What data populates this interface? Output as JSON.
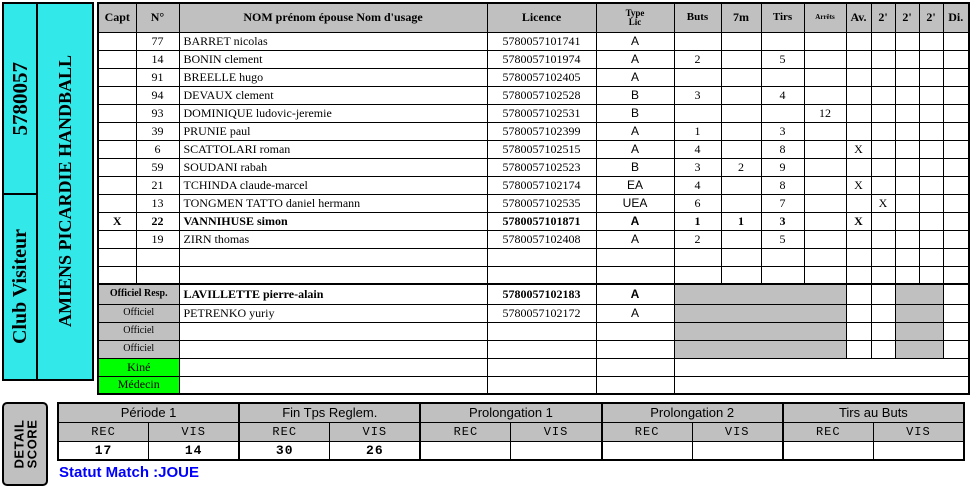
{
  "colors": {
    "cyan": "#33E8E8",
    "green": "#00FF00",
    "gray": "#C0C0C0",
    "statusblue": "#0000FF"
  },
  "club": {
    "code": "5780057",
    "role_label": "Club Visiteur",
    "name": "AMIENS PICARDIE HANDBALL"
  },
  "roster": {
    "columns": [
      "Capt",
      "N°",
      "NOM prénom épouse Nom d'usage",
      "Licence",
      "Type\nLic",
      "Buts",
      "7m",
      "Tirs",
      "Arrêts",
      "Av.",
      "2'",
      "2'",
      "2'",
      "Di."
    ],
    "players": [
      {
        "capt": "",
        "num": "77",
        "name": "BARRET nicolas",
        "licence": "5780057101741",
        "type": "A",
        "buts": "",
        "m7": "",
        "tirs": "",
        "arrets": "",
        "av": "",
        "p2a": "",
        "p2b": "",
        "p2c": "",
        "di": "",
        "bold": false
      },
      {
        "capt": "",
        "num": "14",
        "name": "BONIN clement",
        "licence": "5780057101974",
        "type": "A",
        "buts": "2",
        "m7": "",
        "tirs": "5",
        "arrets": "",
        "av": "",
        "p2a": "",
        "p2b": "",
        "p2c": "",
        "di": "",
        "bold": false
      },
      {
        "capt": "",
        "num": "91",
        "name": "BREELLE hugo",
        "licence": "5780057102405",
        "type": "A",
        "buts": "",
        "m7": "",
        "tirs": "",
        "arrets": "",
        "av": "",
        "p2a": "",
        "p2b": "",
        "p2c": "",
        "di": "",
        "bold": false
      },
      {
        "capt": "",
        "num": "94",
        "name": "DEVAUX clement",
        "licence": "5780057102528",
        "type": "B",
        "buts": "3",
        "m7": "",
        "tirs": "4",
        "arrets": "",
        "av": "",
        "p2a": "",
        "p2b": "",
        "p2c": "",
        "di": "",
        "bold": false
      },
      {
        "capt": "",
        "num": "93",
        "name": "DOMINIQUE ludovic-jeremie",
        "licence": "5780057102531",
        "type": "B",
        "buts": "",
        "m7": "",
        "tirs": "",
        "arrets": "12",
        "av": "",
        "p2a": "",
        "p2b": "",
        "p2c": "",
        "di": "",
        "bold": false
      },
      {
        "capt": "",
        "num": "39",
        "name": "PRUNIE paul",
        "licence": "5780057102399",
        "type": "A",
        "buts": "1",
        "m7": "",
        "tirs": "3",
        "arrets": "",
        "av": "",
        "p2a": "",
        "p2b": "",
        "p2c": "",
        "di": "",
        "bold": false
      },
      {
        "capt": "",
        "num": "6",
        "name": "SCATTOLARI roman",
        "licence": "5780057102515",
        "type": "A",
        "buts": "4",
        "m7": "",
        "tirs": "8",
        "arrets": "",
        "av": "X",
        "p2a": "",
        "p2b": "",
        "p2c": "",
        "di": "",
        "bold": false
      },
      {
        "capt": "",
        "num": "59",
        "name": "SOUDANI rabah",
        "licence": "5780057102523",
        "type": "B",
        "buts": "3",
        "m7": "2",
        "tirs": "9",
        "arrets": "",
        "av": "",
        "p2a": "",
        "p2b": "",
        "p2c": "",
        "di": "",
        "bold": false
      },
      {
        "capt": "",
        "num": "21",
        "name": "TCHINDA claude-marcel",
        "licence": "5780057102174",
        "type": "EA",
        "buts": "4",
        "m7": "",
        "tirs": "8",
        "arrets": "",
        "av": "X",
        "p2a": "",
        "p2b": "",
        "p2c": "",
        "di": "",
        "bold": false
      },
      {
        "capt": "",
        "num": "13",
        "name": "TONGMEN TATTO daniel hermann",
        "licence": "5780057102535",
        "type": "UEA",
        "buts": "6",
        "m7": "",
        "tirs": "7",
        "arrets": "",
        "av": "",
        "p2a": "X",
        "p2b": "",
        "p2c": "",
        "di": "",
        "bold": false
      },
      {
        "capt": "X",
        "num": "22",
        "name": "VANNIHUSE simon",
        "licence": "5780057101871",
        "type": "A",
        "buts": "1",
        "m7": "1",
        "tirs": "3",
        "arrets": "",
        "av": "X",
        "p2a": "",
        "p2b": "",
        "p2c": "",
        "di": "",
        "bold": true
      },
      {
        "capt": "",
        "num": "19",
        "name": "ZIRN thomas",
        "licence": "5780057102408",
        "type": "A",
        "buts": "2",
        "m7": "",
        "tirs": "5",
        "arrets": "",
        "av": "",
        "p2a": "",
        "p2b": "",
        "p2c": "",
        "di": "",
        "bold": false
      }
    ],
    "empty_row_count": 2,
    "officials": [
      {
        "role": "Officiel Resp.",
        "name": "LAVILLETTE pierre-alain",
        "licence": "5780057102183",
        "type": "A",
        "bold": true
      },
      {
        "role": "Officiel",
        "name": "PETRENKO yuriy",
        "licence": "5780057102172",
        "type": "A",
        "bold": false
      },
      {
        "role": "Officiel",
        "name": "",
        "licence": "",
        "type": "",
        "bold": false
      },
      {
        "role": "Officiel",
        "name": "",
        "licence": "",
        "type": "",
        "bold": false
      }
    ],
    "staff": [
      {
        "role": "Kiné"
      },
      {
        "role": "Médecin"
      }
    ]
  },
  "score_detail": {
    "panel_label": "DETAIL\nSCORE",
    "rec_label": "REC",
    "vis_label": "VIS",
    "groups": [
      {
        "label": "Période 1",
        "rec": "17",
        "vis": "14"
      },
      {
        "label": "Fin Tps Reglem.",
        "rec": "30",
        "vis": "26"
      },
      {
        "label": "Prolongation 1",
        "rec": "",
        "vis": ""
      },
      {
        "label": "Prolongation 2",
        "rec": "",
        "vis": ""
      },
      {
        "label": "Tirs au Buts",
        "rec": "",
        "vis": ""
      }
    ],
    "statut_label": "Statut Match :JOUE"
  }
}
